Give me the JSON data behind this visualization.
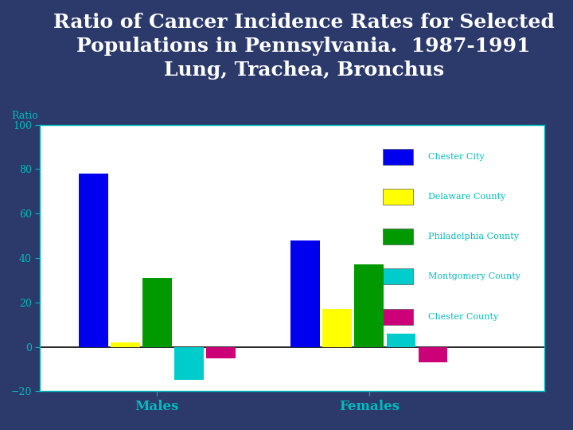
{
  "title": "Ratio of Cancer Incidence Rates for Selected\nPopulations in Pennsylvania.  1987-1991\nLung, Trachea, Bronchus",
  "ylabel": "Ratio",
  "groups": [
    "Males",
    "Females"
  ],
  "categories": [
    "Chester City",
    "Delaware County",
    "Philadelphia County",
    "Montgomery County",
    "Chester County"
  ],
  "colors": [
    "#0000EE",
    "#FFFF00",
    "#009900",
    "#00CCCC",
    "#CC0077"
  ],
  "values": {
    "Males": [
      78,
      2,
      31,
      -15,
      -5
    ],
    "Females": [
      48,
      17,
      37,
      6,
      -7
    ]
  },
  "ylim": [
    -20,
    100
  ],
  "yticks": [
    -20,
    0,
    20,
    40,
    60,
    80,
    100
  ],
  "background_color": "#2B3A6B",
  "plot_bg": "#FFFFFF",
  "title_color": "#FFFFFF",
  "axis_color": "#00BBBB",
  "tick_color": "#00BBBB",
  "xlabel_color": "#00CCCC",
  "title_fontsize": 18,
  "axis_label_fontsize": 9,
  "tick_fontsize": 9,
  "legend_fontsize": 8,
  "bar_width": 0.06,
  "group_centers": [
    0.22,
    0.62
  ],
  "xlim": [
    0,
    0.95
  ]
}
